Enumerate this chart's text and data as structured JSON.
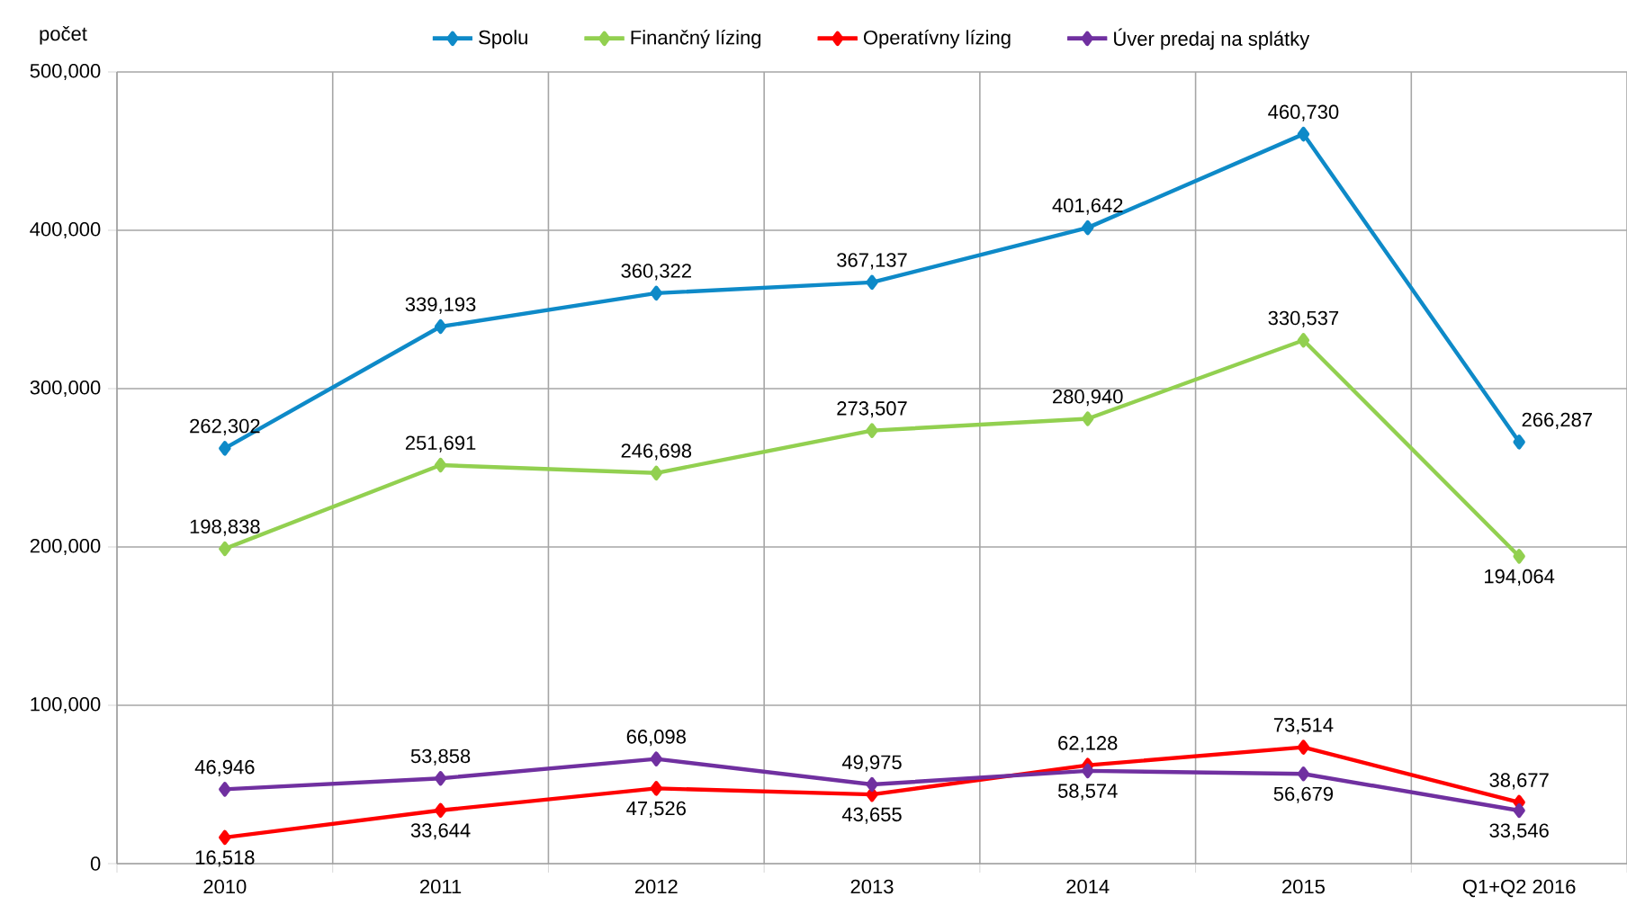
{
  "chart_data": {
    "type": "line",
    "ylabel": "počet",
    "categories": [
      "2010",
      "2011",
      "2012",
      "2013",
      "2014",
      "2015",
      "Q1+Q2 2016"
    ],
    "series": [
      {
        "name": "Spolu",
        "color": "#0e8ac8",
        "values": [
          262302,
          339193,
          360322,
          367137,
          401642,
          460730,
          266287
        ],
        "value_labels": [
          "262,302",
          "339,193",
          "360,322",
          "367,137",
          "401,642",
          "460,730",
          "266,287"
        ]
      },
      {
        "name": "Finančný lízing",
        "color": "#92d050",
        "values": [
          198838,
          251691,
          246698,
          273507,
          280940,
          330537,
          194064
        ],
        "value_labels": [
          "198,838",
          "251,691",
          "246,698",
          "273,507",
          "280,940",
          "330,537",
          "194,064"
        ]
      },
      {
        "name": "Operatívny lízing",
        "color": "#ff0000",
        "values": [
          16518,
          33644,
          47526,
          43655,
          62128,
          73514,
          38677
        ],
        "value_labels": [
          "16,518",
          "33,644",
          "47,526",
          "43,655",
          "62,128",
          "73,514",
          "38,677"
        ]
      },
      {
        "name": "Úver predaj na splátky",
        "color": "#7030a0",
        "values": [
          46946,
          53858,
          66098,
          49975,
          58574,
          56679,
          33546
        ],
        "value_labels": [
          "46,946",
          "53,858",
          "66,098",
          "49,975",
          "58,574",
          "56,679",
          "33,546"
        ]
      }
    ],
    "ylim": [
      0,
      500000
    ],
    "yticks": [
      0,
      {
        "value": 100000,
        "label": "100,000"
      },
      {
        "value": 200000,
        "label": "200,000"
      },
      {
        "value": 300000,
        "label": "300,000"
      },
      {
        "value": 400000,
        "label": "400,000"
      },
      {
        "value": 500000,
        "label": "500,000"
      }
    ],
    "grid": true,
    "legend": "top",
    "marker": "diamond",
    "line_style": "solid"
  }
}
